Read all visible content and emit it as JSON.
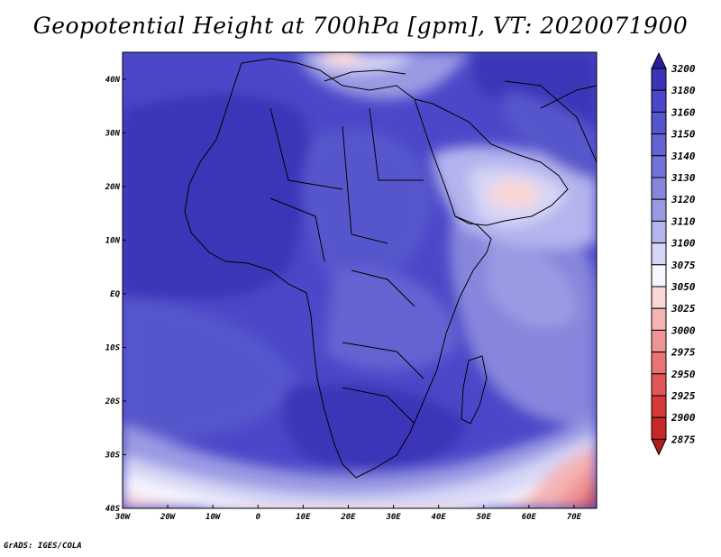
{
  "title": "Geopotential Height at 700hPa [gpm], VT: 2020071900",
  "footer": "GrADS: IGES/COLA",
  "map": {
    "region": "Africa",
    "lon_range": [
      -30,
      75
    ],
    "lat_range": [
      -40,
      45
    ],
    "x_ticks": [
      "30W",
      "20W",
      "10W",
      "0",
      "10E",
      "20E",
      "30E",
      "40E",
      "50E",
      "60E",
      "70E"
    ],
    "y_ticks": [
      "40N",
      "30N",
      "20N",
      "10N",
      "EQ",
      "10S",
      "20S",
      "30S",
      "40S"
    ]
  },
  "colorbar": {
    "levels": [
      "3200",
      "3180",
      "3160",
      "3150",
      "3140",
      "3130",
      "3120",
      "3110",
      "3100",
      "3075",
      "3050",
      "3025",
      "3000",
      "2975",
      "2950",
      "2925",
      "2900",
      "2875"
    ],
    "colors": [
      "#2a1f9a",
      "#3a35b8",
      "#4a48c8",
      "#5656cc",
      "#6464d2",
      "#7474d8",
      "#8686dc",
      "#9a9ae4",
      "#b4b4ee",
      "#d6d6f6",
      "#f6f6ff",
      "#fbd6d6",
      "#f5b4b4",
      "#ef9494",
      "#e87474",
      "#e15656",
      "#d83a3a",
      "#c82828",
      "#b01c1c"
    ]
  }
}
